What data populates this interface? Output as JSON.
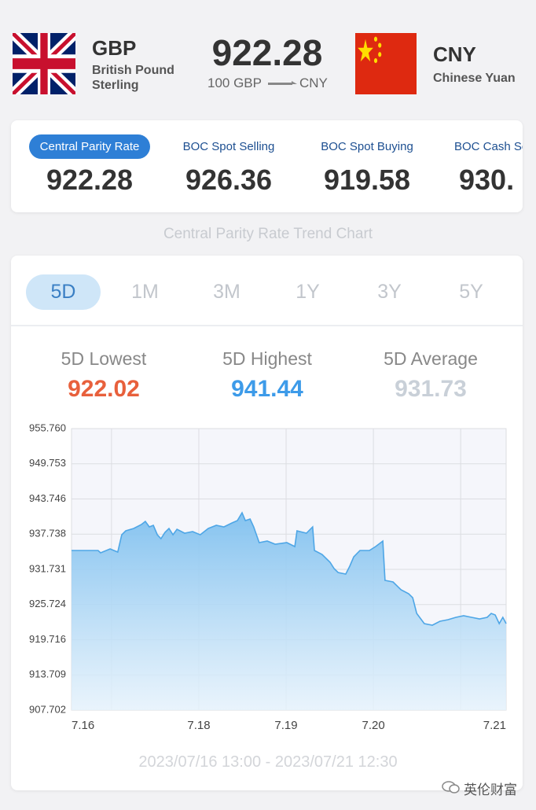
{
  "header": {
    "base": {
      "code": "GBP",
      "name": "British Pound Sterling"
    },
    "rate": "922.28",
    "conversion": {
      "amount": "100 GBP",
      "target": "CNY"
    },
    "quote": {
      "code": "CNY",
      "name": "Chinese Yuan"
    }
  },
  "rate_tabs": [
    {
      "label": "Central Parity Rate",
      "value": "922.28"
    },
    {
      "label": "BOC Spot Selling",
      "value": "926.36"
    },
    {
      "label": "BOC Spot Buying",
      "value": "919.58"
    },
    {
      "label": "BOC Cash Selling",
      "value": "930."
    }
  ],
  "section_title": "Central Parity Rate Trend Chart",
  "periods": [
    "5D",
    "1M",
    "3M",
    "1Y",
    "3Y",
    "5Y"
  ],
  "stats": [
    {
      "label": "5D Lowest",
      "value": "922.02"
    },
    {
      "label": "5D Highest",
      "value": "941.44"
    },
    {
      "label": "5D Average",
      "value": "931.73"
    }
  ],
  "chart_data": {
    "type": "line",
    "x": [
      0,
      4.1,
      7.3,
      8.0,
      10.6,
      12.7,
      13.8,
      14.9,
      17.1,
      19.2,
      20.3,
      21.4,
      22.5,
      23.6,
      24.6,
      25.7,
      26.8,
      27.9,
      29.0,
      31.1,
      33.3,
      35.4,
      37.6,
      39.8,
      41.9,
      44.1,
      45.6,
      46.9,
      47.8,
      49.1,
      50.1,
      51.6,
      53.8,
      56.0,
      59.2,
      61.4,
      62.0,
      64.6,
      66.3,
      66.8,
      68.9,
      71.1,
      72.2,
      73.3,
      75.4,
      76.5,
      77.6,
      79.3,
      81.9,
      83.6,
      85.6,
      86.2,
      88.4,
      90.6,
      92.7,
      93.8,
      94.9,
      97.0,
      99.2,
      101.3,
      103.5,
      105.7,
      107.8,
      110.0,
      112.2,
      114.3,
      115.4,
      116.5,
      117.6,
      118.6,
      119.5
    ],
    "values": [
      934.95,
      934.95,
      934.95,
      934.55,
      935.22,
      934.68,
      937.64,
      938.31,
      938.71,
      939.38,
      939.92,
      938.98,
      939.25,
      937.64,
      936.97,
      938.04,
      938.71,
      937.64,
      938.58,
      937.91,
      938.17,
      937.64,
      938.71,
      939.25,
      938.98,
      939.65,
      940.05,
      941.4,
      940.05,
      940.32,
      938.98,
      936.3,
      936.56,
      936.03,
      936.3,
      935.62,
      938.31,
      937.91,
      938.98,
      934.95,
      934.28,
      932.94,
      931.87,
      931.19,
      930.93,
      932.27,
      933.87,
      934.95,
      934.95,
      935.62,
      936.56,
      929.85,
      929.58,
      928.24,
      927.57,
      926.9,
      924.21,
      922.47,
      922.2,
      922.87,
      923.14,
      923.54,
      923.81,
      923.54,
      923.27,
      923.54,
      924.21,
      923.94,
      922.47,
      923.54,
      922.47
    ],
    "color": "#4ea6e6",
    "xlim": [
      0,
      119.5
    ],
    "xticks": [
      {
        "value": 0,
        "label": "7.16"
      },
      {
        "value": 35,
        "label": "7.18"
      },
      {
        "value": 59,
        "label": "7.19"
      },
      {
        "value": 83,
        "label": "7.20"
      },
      {
        "value": 119.5,
        "label": "7.21"
      }
    ],
    "xgrid": [
      11,
      35,
      59,
      83,
      107
    ],
    "ylim": [
      907.702,
      955.76
    ],
    "yticks": [
      907.702,
      913.709,
      919.716,
      925.724,
      931.731,
      937.738,
      943.746,
      949.753,
      {
        "value": 955.76,
        "label": "955.760"
      }
    ],
    "grid": true
  },
  "date_range": "2023/07/16 13:00 - 2023/07/21 12:30",
  "watermark": "英伦财富"
}
